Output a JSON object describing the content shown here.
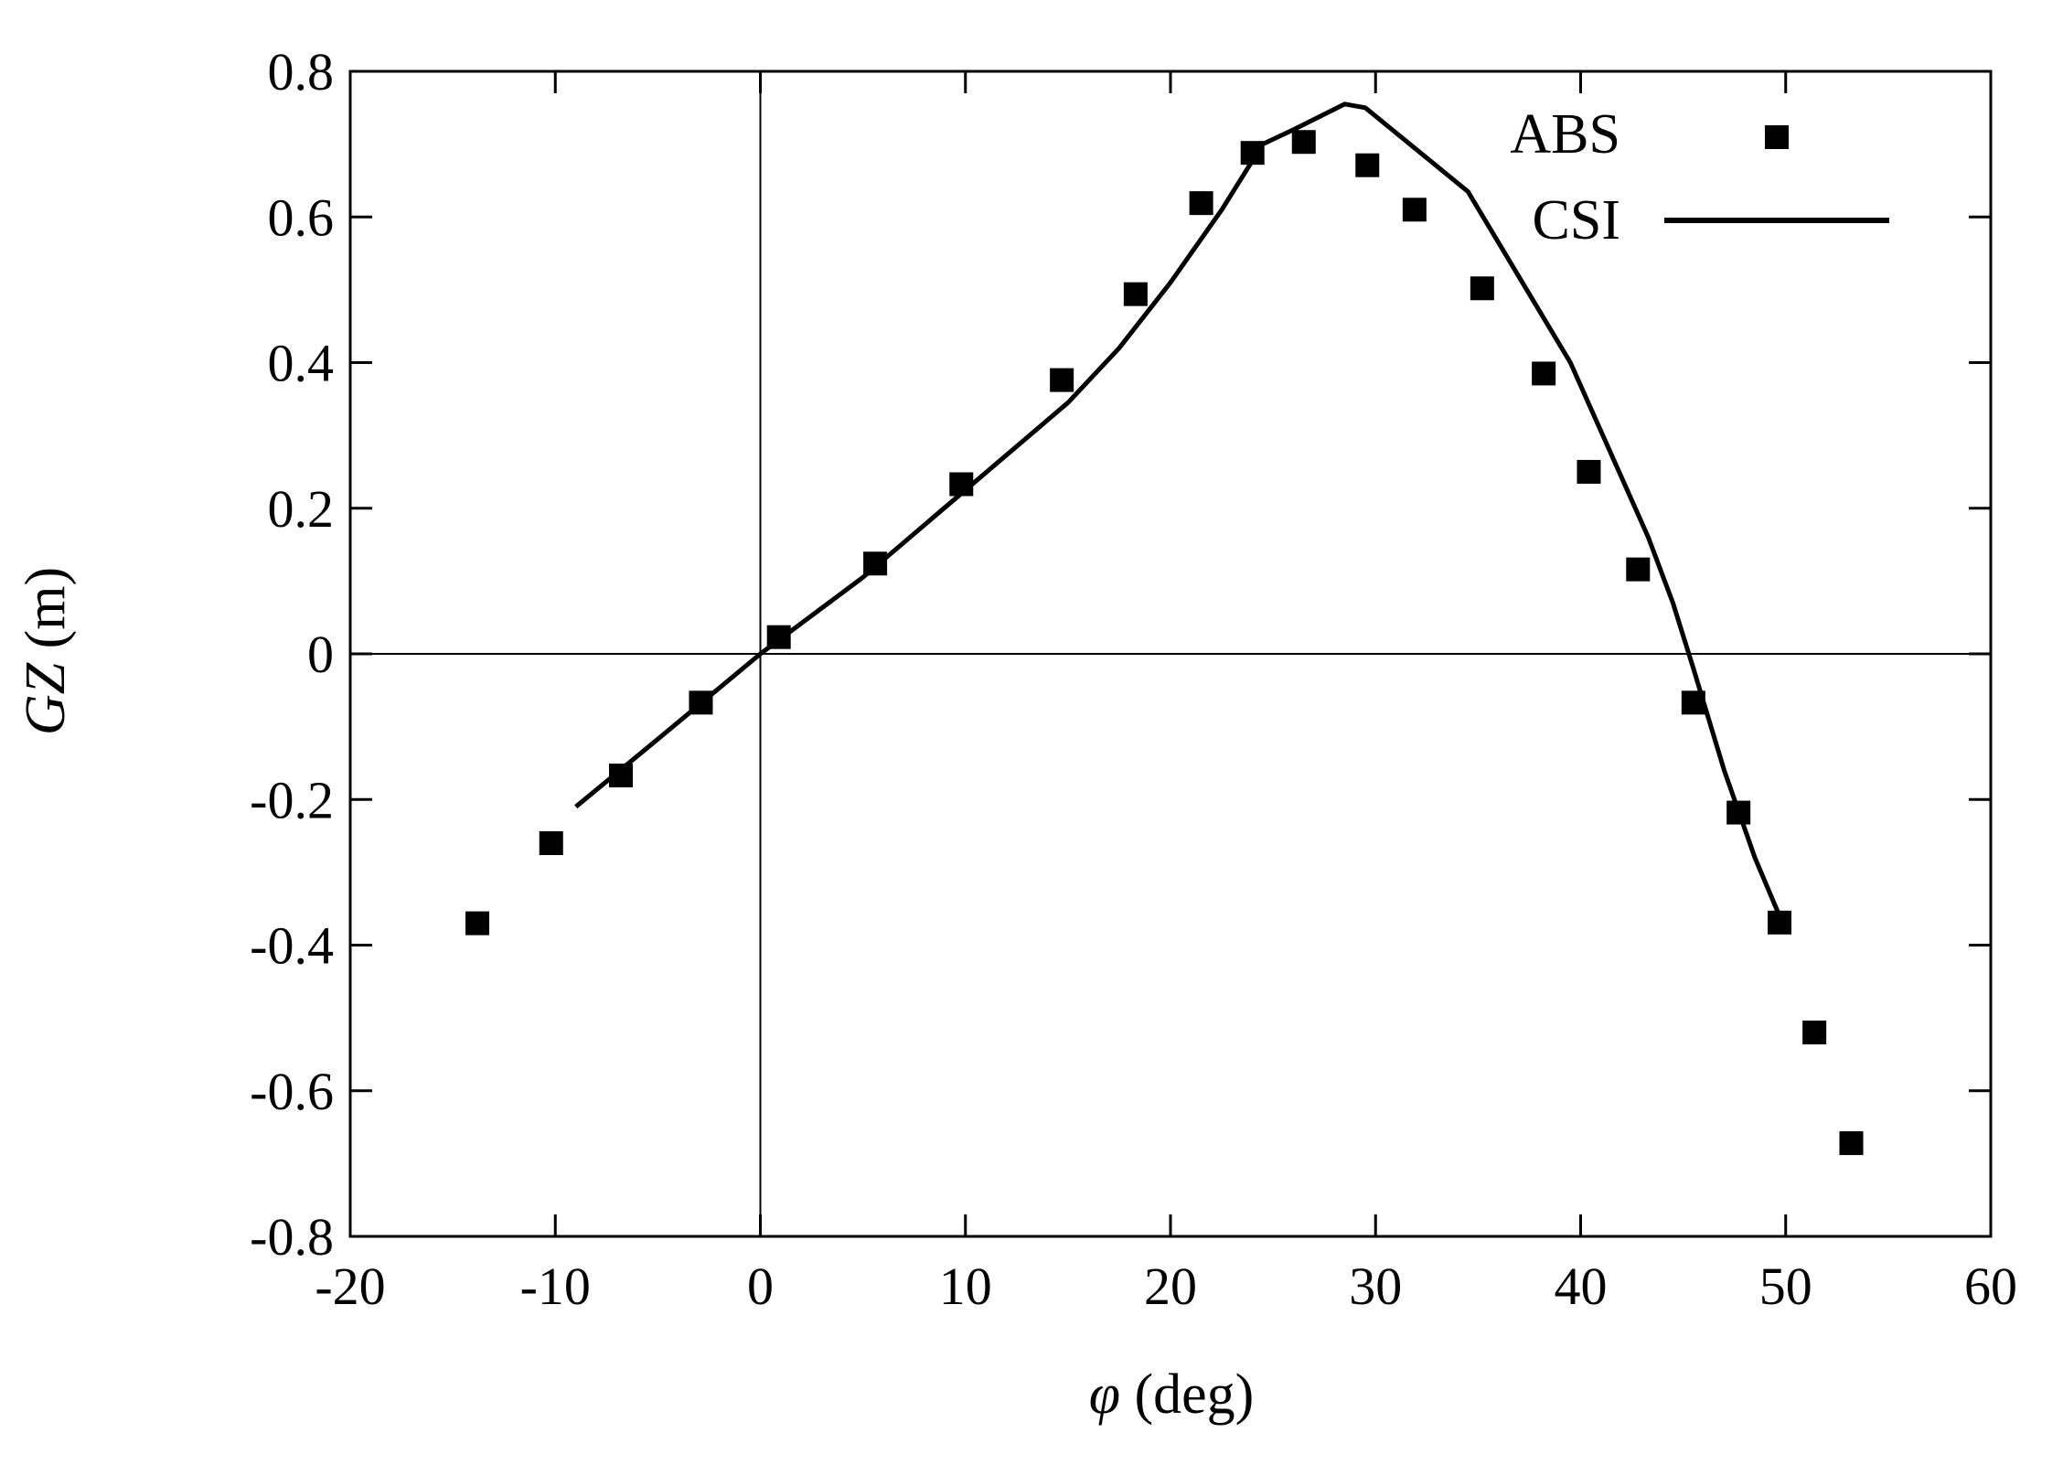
{
  "chart_data": {
    "type": "scatter",
    "title": "",
    "xlabel": {
      "symbol": "φ",
      "unit": " (deg)"
    },
    "ylabel": {
      "symbol": "GZ",
      "unit": " (m)"
    },
    "xlim": [
      -20,
      60
    ],
    "ylim": [
      -0.8,
      0.8
    ],
    "x_ticks": [
      -20,
      -10,
      0,
      10,
      20,
      30,
      40,
      50,
      60
    ],
    "x_tick_labels": [
      "-20",
      "-10",
      "0",
      "10",
      "20",
      "30",
      "40",
      "50",
      "60"
    ],
    "y_ticks": [
      -0.8,
      -0.6,
      -0.4,
      -0.2,
      0,
      0.2,
      0.4,
      0.6,
      0.8
    ],
    "y_tick_labels": [
      "-0.8",
      "-0.6",
      "-0.4",
      "-0.2",
      "0",
      "0.2",
      "0.4",
      "0.6",
      "0.8"
    ],
    "grid": false,
    "zero_lines": true,
    "legend_position": "top-right",
    "series": [
      {
        "name": "ABS",
        "kind": "markers",
        "marker": "square",
        "color": "#000000",
        "points": [
          [
            -13.8,
            -0.37
          ],
          [
            -10.2,
            -0.26
          ],
          [
            -6.8,
            -0.167
          ],
          [
            -2.9,
            -0.067
          ],
          [
            0.9,
            0.023
          ],
          [
            5.6,
            0.124
          ],
          [
            9.8,
            0.233
          ],
          [
            14.7,
            0.376
          ],
          [
            18.3,
            0.494
          ],
          [
            21.5,
            0.619
          ],
          [
            24.0,
            0.688
          ],
          [
            26.5,
            0.703
          ],
          [
            29.6,
            0.671
          ],
          [
            31.9,
            0.61
          ],
          [
            35.2,
            0.502
          ],
          [
            38.2,
            0.385
          ],
          [
            40.4,
            0.25
          ],
          [
            42.8,
            0.116
          ],
          [
            45.5,
            -0.067
          ],
          [
            47.7,
            -0.218
          ],
          [
            49.7,
            -0.369
          ],
          [
            51.4,
            -0.52
          ],
          [
            53.2,
            -0.672
          ]
        ]
      },
      {
        "name": "CSI",
        "kind": "line",
        "color": "#000000",
        "points": [
          [
            -9.0,
            -0.21
          ],
          [
            -5.0,
            -0.117
          ],
          [
            0.0,
            0.0
          ],
          [
            5.0,
            0.105
          ],
          [
            10.0,
            0.225
          ],
          [
            15.0,
            0.345
          ],
          [
            17.5,
            0.42
          ],
          [
            20.0,
            0.51
          ],
          [
            22.5,
            0.61
          ],
          [
            24.5,
            0.7
          ],
          [
            26.0,
            0.72
          ],
          [
            28.5,
            0.755
          ],
          [
            29.5,
            0.75
          ],
          [
            34.5,
            0.635
          ],
          [
            39.5,
            0.4
          ],
          [
            43.3,
            0.16
          ],
          [
            44.5,
            0.07
          ],
          [
            45.5,
            -0.02
          ],
          [
            47.0,
            -0.16
          ],
          [
            48.5,
            -0.28
          ],
          [
            49.7,
            -0.36
          ]
        ]
      }
    ]
  }
}
